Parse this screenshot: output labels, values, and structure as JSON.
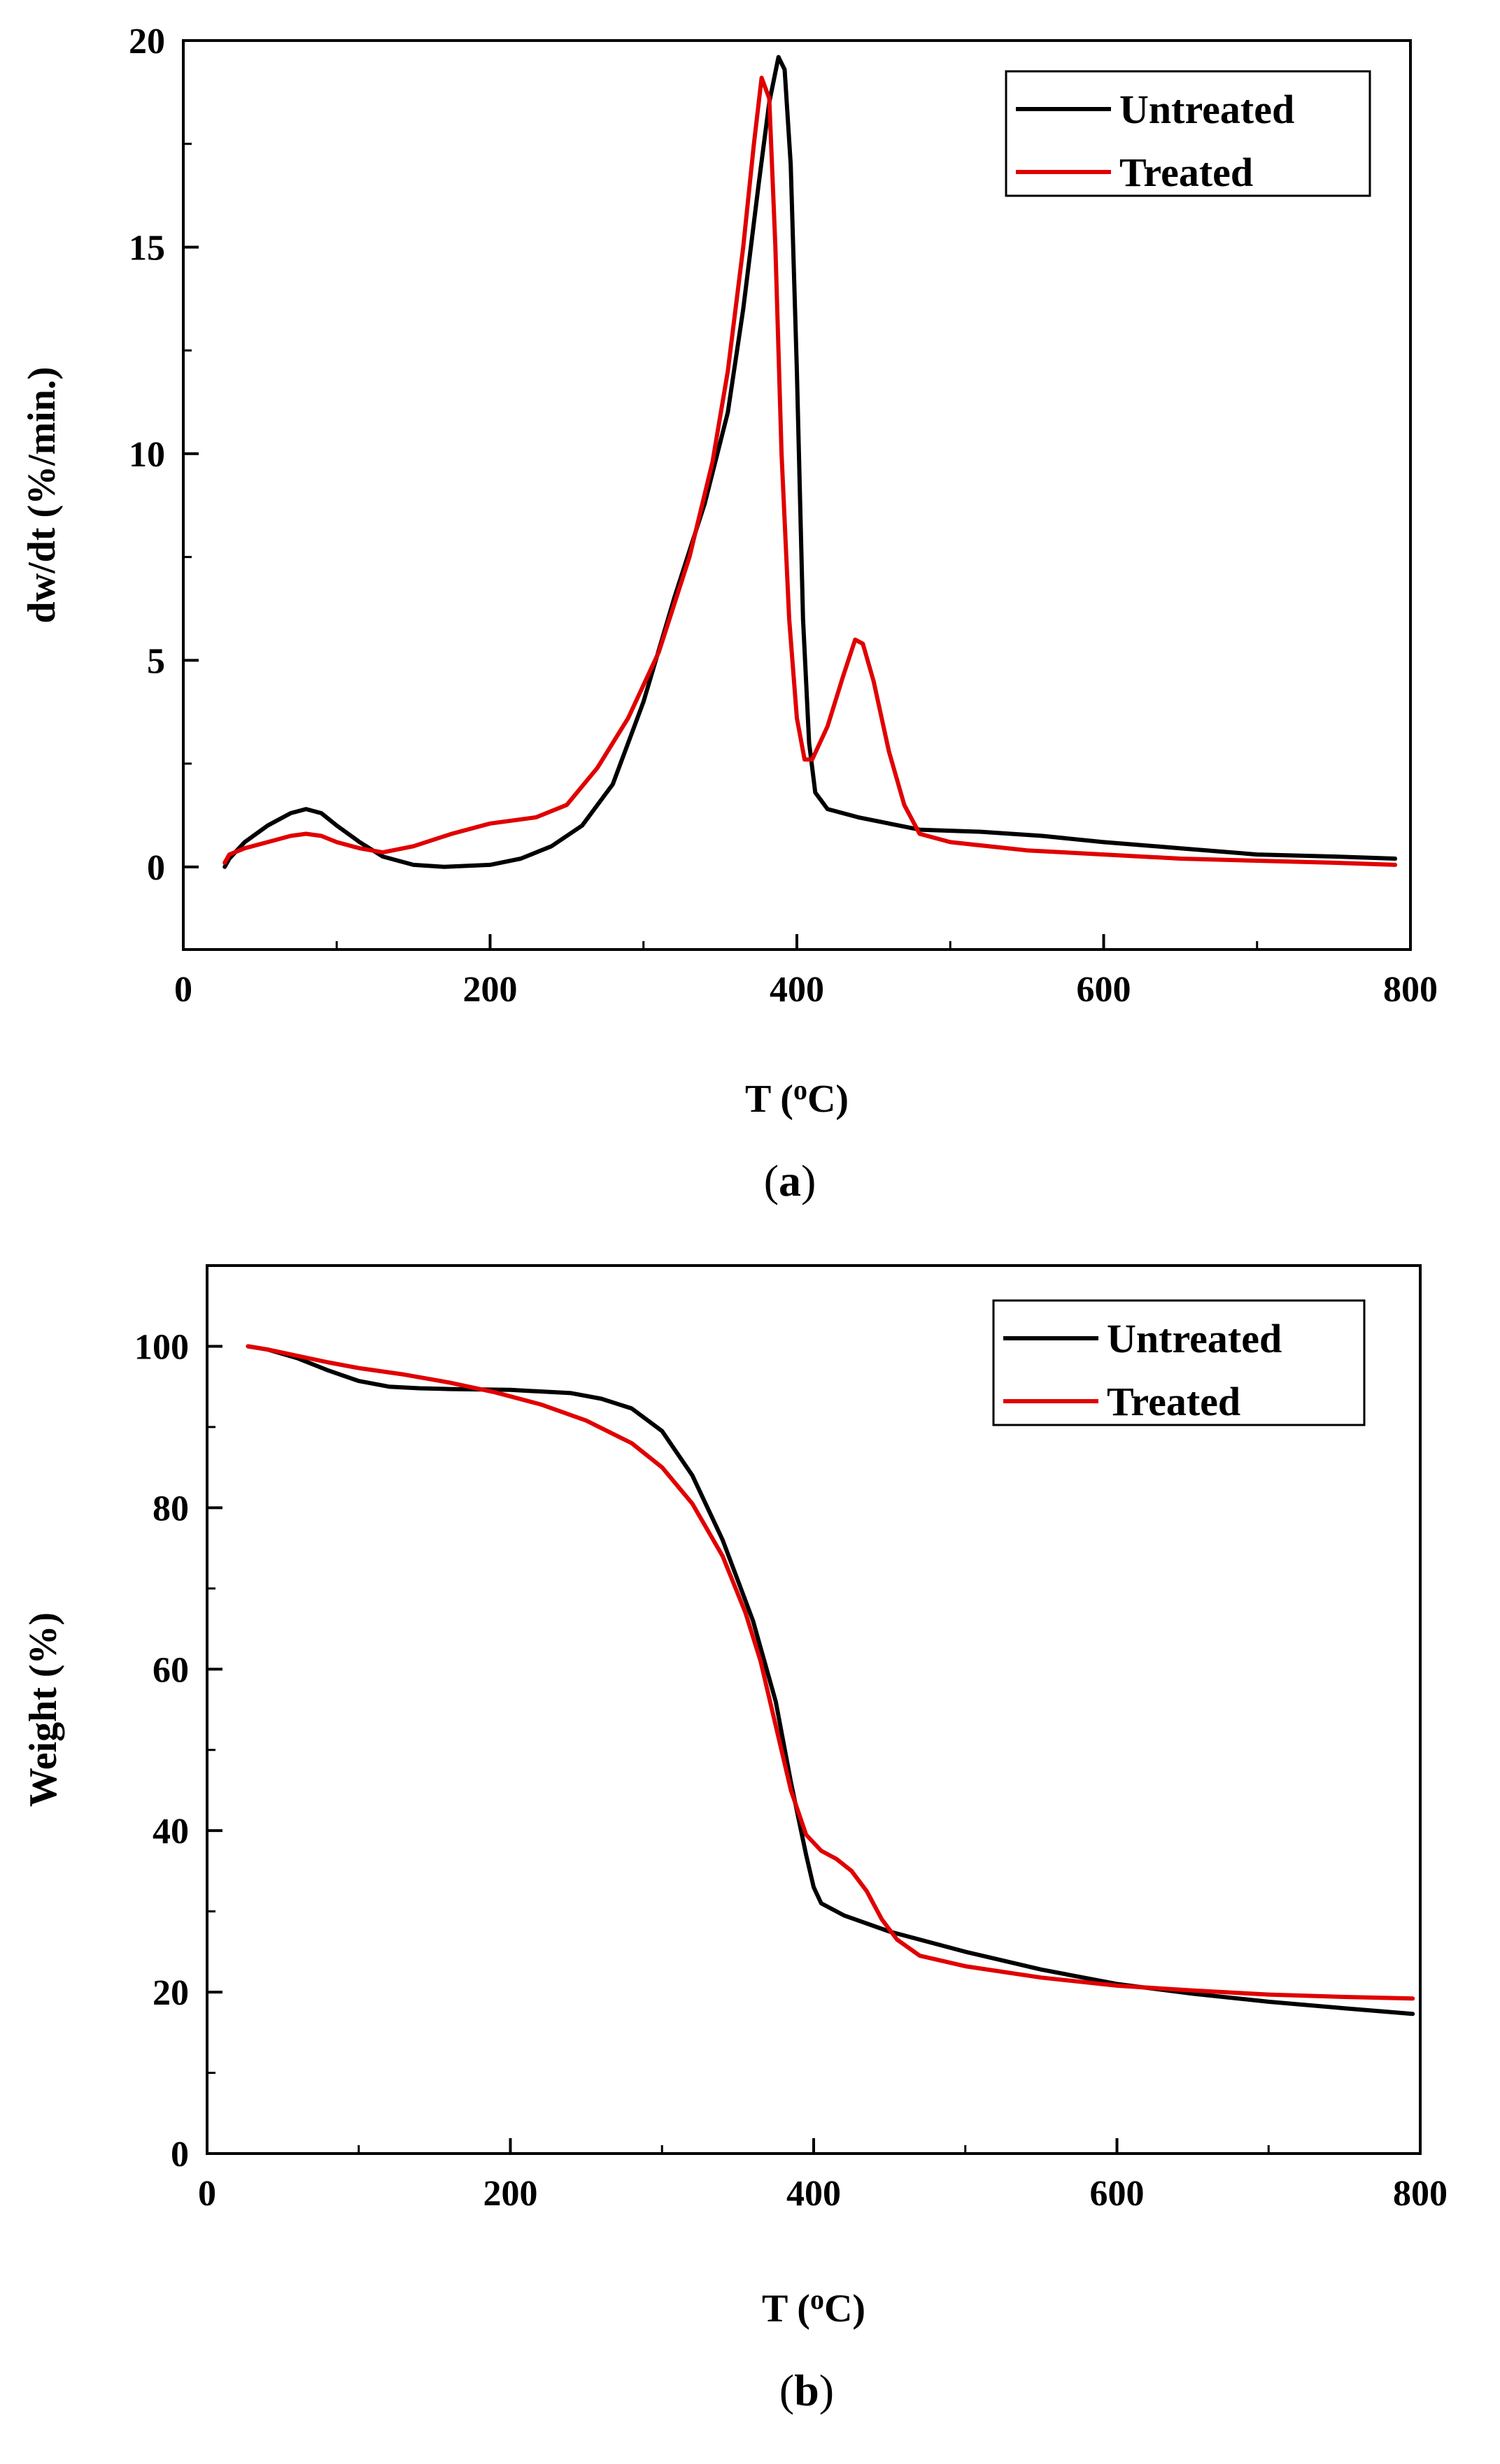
{
  "chart_data": [
    {
      "type": "line",
      "panel": "(a)",
      "caption_letter": "a",
      "xlabel": "T (",
      "xlabel_sup": "o",
      "xlabel_end": "C)",
      "ylabel": "dw/dt  (%/min.)",
      "xlim": [
        0,
        800
      ],
      "ylim": [
        -2,
        20
      ],
      "xticks": [
        0,
        200,
        400,
        600,
        800
      ],
      "yticks": [
        0,
        5,
        10,
        15,
        20
      ],
      "legend": "top-right",
      "series": [
        {
          "name": "Untreated",
          "color": "#000000",
          "x": [
            27,
            30,
            40,
            55,
            70,
            80,
            90,
            100,
            115,
            130,
            150,
            170,
            200,
            220,
            240,
            260,
            280,
            300,
            320,
            340,
            355,
            365,
            375,
            382,
            388,
            392,
            396,
            400,
            404,
            408,
            412,
            420,
            440,
            480,
            520,
            560,
            600,
            650,
            700,
            750,
            790
          ],
          "y": [
            0,
            0.2,
            0.6,
            1.0,
            1.3,
            1.4,
            1.3,
            1.0,
            0.6,
            0.25,
            0.05,
            0.0,
            0.05,
            0.2,
            0.5,
            1.0,
            2.0,
            4.0,
            6.5,
            8.8,
            11,
            13.5,
            16.5,
            18.5,
            19.6,
            19.3,
            17,
            12,
            6,
            3.0,
            1.8,
            1.4,
            1.2,
            0.9,
            0.85,
            0.75,
            0.6,
            0.45,
            0.3,
            0.25,
            0.2
          ]
        },
        {
          "name": "Treated",
          "color": "#e00000",
          "x": [
            27,
            30,
            40,
            55,
            70,
            80,
            90,
            100,
            115,
            130,
            150,
            175,
            200,
            230,
            250,
            270,
            290,
            310,
            330,
            345,
            355,
            365,
            372,
            377,
            382,
            386,
            390,
            395,
            400,
            405,
            410,
            420,
            430,
            438,
            443,
            450,
            460,
            470,
            480,
            500,
            550,
            600,
            650,
            700,
            750,
            790
          ],
          "y": [
            0.1,
            0.3,
            0.45,
            0.6,
            0.75,
            0.8,
            0.75,
            0.6,
            0.45,
            0.35,
            0.5,
            0.8,
            1.05,
            1.2,
            1.5,
            2.4,
            3.6,
            5.2,
            7.5,
            9.8,
            12,
            15,
            17.5,
            19.1,
            18.6,
            15,
            10,
            6,
            3.6,
            2.6,
            2.6,
            3.4,
            4.6,
            5.5,
            5.4,
            4.5,
            2.8,
            1.5,
            0.8,
            0.6,
            0.4,
            0.3,
            0.2,
            0.15,
            0.1,
            0.05
          ]
        }
      ]
    },
    {
      "type": "line",
      "panel": "(b)",
      "caption_letter": "b",
      "xlabel": "T (",
      "xlabel_sup": "o",
      "xlabel_end": "C)",
      "ylabel": "Weight  (%)",
      "xlim": [
        0,
        800
      ],
      "ylim": [
        0,
        110
      ],
      "xticks": [
        0,
        200,
        400,
        600,
        800
      ],
      "yticks": [
        0,
        20,
        40,
        60,
        80,
        100
      ],
      "legend": "top-right",
      "series": [
        {
          "name": "Untreated",
          "color": "#000000",
          "x": [
            27,
            40,
            60,
            80,
            100,
            120,
            140,
            160,
            200,
            240,
            260,
            280,
            300,
            320,
            340,
            360,
            375,
            385,
            395,
            400,
            405,
            420,
            450,
            500,
            550,
            600,
            650,
            700,
            750,
            795
          ],
          "y": [
            100,
            99.6,
            98.5,
            97,
            95.7,
            95,
            94.8,
            94.7,
            94.6,
            94.2,
            93.5,
            92.3,
            89.5,
            84,
            76,
            66,
            56,
            46,
            37,
            33,
            31,
            29.5,
            27.5,
            25,
            22.8,
            21,
            19.8,
            18.8,
            18,
            17.3
          ]
        },
        {
          "name": "Treated",
          "color": "#e00000",
          "x": [
            27,
            40,
            60,
            80,
            100,
            130,
            160,
            190,
            220,
            250,
            280,
            300,
            320,
            340,
            355,
            365,
            375,
            385,
            395,
            405,
            415,
            425,
            435,
            445,
            455,
            470,
            500,
            550,
            600,
            650,
            700,
            750,
            795
          ],
          "y": [
            100,
            99.6,
            98.8,
            98,
            97.3,
            96.5,
            95.5,
            94.3,
            92.8,
            90.8,
            88,
            85,
            80.5,
            74,
            67,
            61,
            53,
            45,
            39.5,
            37.5,
            36.5,
            35,
            32.5,
            29,
            26.5,
            24.5,
            23.2,
            21.8,
            20.8,
            20.2,
            19.7,
            19.4,
            19.2
          ]
        }
      ]
    }
  ]
}
